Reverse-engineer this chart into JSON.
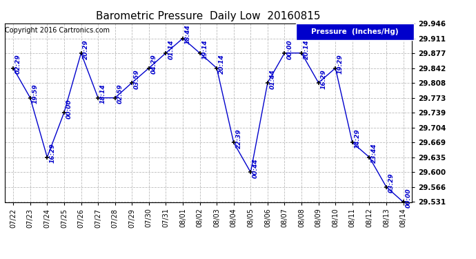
{
  "title": "Barometric Pressure  Daily Low  20160815",
  "copyright": "Copyright 2016 Cartronics.com",
  "legend_label": "Pressure  (Inches/Hg)",
  "dates": [
    "07/22",
    "07/23",
    "07/24",
    "07/25",
    "07/26",
    "07/27",
    "07/28",
    "07/29",
    "07/30",
    "07/31",
    "08/01",
    "08/02",
    "08/03",
    "08/04",
    "08/05",
    "08/06",
    "08/07",
    "08/08",
    "08/09",
    "08/10",
    "08/11",
    "08/12",
    "08/13",
    "08/14"
  ],
  "values": [
    29.842,
    29.773,
    29.635,
    29.739,
    29.877,
    29.773,
    29.773,
    29.808,
    29.842,
    29.877,
    29.911,
    29.877,
    29.842,
    29.669,
    29.6,
    29.808,
    29.877,
    29.877,
    29.808,
    29.842,
    29.669,
    29.635,
    29.566,
    29.531
  ],
  "time_labels": [
    "02:29",
    "19:59",
    "16:29",
    "00:00",
    "20:29",
    "18:14",
    "02:59",
    "03:59",
    "04:29",
    "01:14",
    "18:44",
    "19:14",
    "20:14",
    "22:39",
    "00:44",
    "01:44",
    "00:00",
    "20:14",
    "16:29",
    "19:29",
    "14:29",
    "23:44",
    "03:29",
    "00:00"
  ],
  "ylim": [
    29.531,
    29.946
  ],
  "yticks": [
    29.531,
    29.566,
    29.6,
    29.635,
    29.669,
    29.704,
    29.739,
    29.773,
    29.808,
    29.842,
    29.877,
    29.911,
    29.946
  ],
  "line_color": "#0000cc",
  "marker_color": "#000066",
  "bg_color": "#ffffff",
  "grid_color": "#aaaaaa",
  "title_color": "#000000",
  "legend_bg": "#0000cc",
  "legend_text_color": "#ffffff",
  "copyright_color": "#000000",
  "figwidth": 6.9,
  "figheight": 3.75,
  "dpi": 100
}
